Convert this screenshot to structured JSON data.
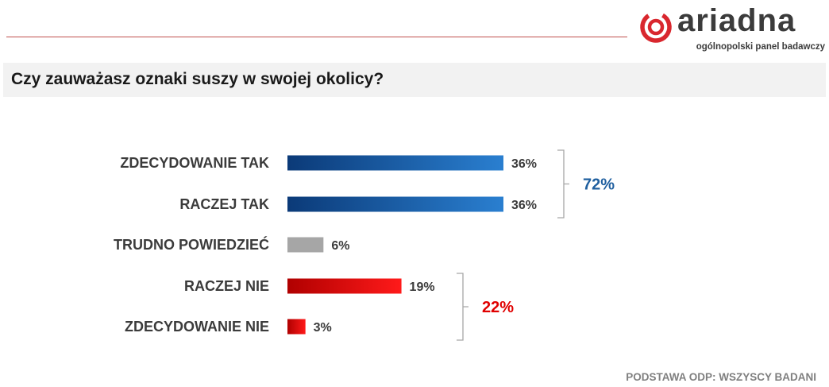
{
  "brand": {
    "name": "ariadna",
    "tagline": "ogólnopolski panel badawczy",
    "accent": "#d9272e"
  },
  "title": "Czy zauważasz oznaki suszy w swojej okolicy?",
  "footnote": "PODSTAWA ODP: WSZYSCY BADANI",
  "chart_data": {
    "type": "bar",
    "orientation": "horizontal",
    "title": "",
    "xlabel": "",
    "ylabel": "",
    "xlim": [
      0,
      36
    ],
    "categories": [
      "ZDECYDOWANIE TAK",
      "RACZEJ TAK",
      "TRUDNO POWIEDZIEĆ",
      "RACZEJ NIE",
      "ZDECYDOWANIE NIE"
    ],
    "values": [
      36,
      36,
      6,
      19,
      3
    ],
    "value_labels": [
      "36%",
      "36%",
      "6%",
      "19%",
      "3%"
    ],
    "colors": [
      [
        "#0b3a78",
        "#2a7fd0"
      ],
      [
        "#0b3a78",
        "#2a7fd0"
      ],
      [
        "#a6a6a6",
        "#a6a6a6"
      ],
      [
        "#b00000",
        "#ff1a1a"
      ],
      [
        "#b00000",
        "#ff1a1a"
      ]
    ],
    "groups": [
      {
        "label": "72%",
        "color": "#1f5f9f",
        "from": 0,
        "to": 1
      },
      {
        "label": "22%",
        "color": "#e00000",
        "from": 3,
        "to": 4
      }
    ],
    "grid": false,
    "legend": "none"
  }
}
